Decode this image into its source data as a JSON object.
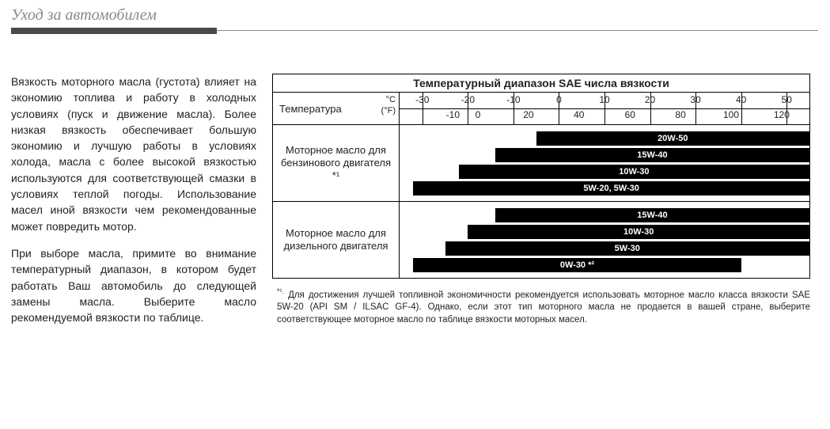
{
  "page": {
    "title": "Уход за автомобилем"
  },
  "paragraphs": {
    "p1": "Вязкость моторного масла (густота) влияет на экономию топлива и работу в холодных условиях (пуск и движение масла). Более низкая вязкость обеспечивает большую экономию и лучшую работы в условиях холода, масла с более высокой вязкостью используются для соответствующей смазки в условиях теплой погоды. Использование масел иной вязкости чем рекомендованные может повредить мотор.",
    "p2": "При выборе масла, примите во внимание температурный диапазон, в котором будет работать Ваш автомобиль до следующей замены масла. Выберите масло рекомендуемой вязкости по таблице."
  },
  "chart": {
    "title": "Температурный диапазон SAE числа вязкости",
    "temp_label": "Температура",
    "unit_c": "°C",
    "unit_f": "(°F)",
    "c_min": -35,
    "c_max": 55,
    "c_ticks": [
      -30,
      -20,
      -10,
      0,
      10,
      20,
      30,
      40,
      50
    ],
    "f_ticks": [
      {
        "c": -23.3,
        "label": "-10"
      },
      {
        "c": -17.8,
        "label": "0"
      },
      {
        "c": -6.7,
        "label": "20"
      },
      {
        "c": 4.4,
        "label": "40"
      },
      {
        "c": 15.6,
        "label": "60"
      },
      {
        "c": 26.7,
        "label": "80"
      },
      {
        "c": 37.8,
        "label": "100"
      },
      {
        "c": 48.9,
        "label": "120"
      }
    ],
    "groups": [
      {
        "label": "Моторное масло для бензинового двигателя *¹",
        "bars": [
          {
            "label": "20W-50",
            "from_c": -5,
            "to_c": 55
          },
          {
            "label": "15W-40",
            "from_c": -14,
            "to_c": 55
          },
          {
            "label": "10W-30",
            "from_c": -22,
            "to_c": 55
          },
          {
            "label": "5W-20, 5W-30",
            "from_c": -32,
            "to_c": 55
          }
        ]
      },
      {
        "label": "Моторное масло для дизельного двигателя",
        "bars": [
          {
            "label": "15W-40",
            "from_c": -14,
            "to_c": 55
          },
          {
            "label": "10W-30",
            "from_c": -20,
            "to_c": 55
          },
          {
            "label": "5W-30",
            "from_c": -25,
            "to_c": 55
          },
          {
            "label": "0W-30 *²",
            "from_c": -32,
            "to_c": 40
          }
        ]
      }
    ],
    "colors": {
      "bar_bg": "#000000",
      "bar_text": "#ffffff",
      "border": "#000000"
    }
  },
  "footnote": {
    "marker": "*¹.",
    "text": "Для достижения лучшей топливной экономичности рекомендуется использовать моторное масло класса вязкости SAE 5W-20 (API SM / ILSAC GF-4). Однако, если этот тип моторного масла не продается в вашей стране, выберите соответствующее моторное масло по таблице вязкости моторных масел."
  }
}
